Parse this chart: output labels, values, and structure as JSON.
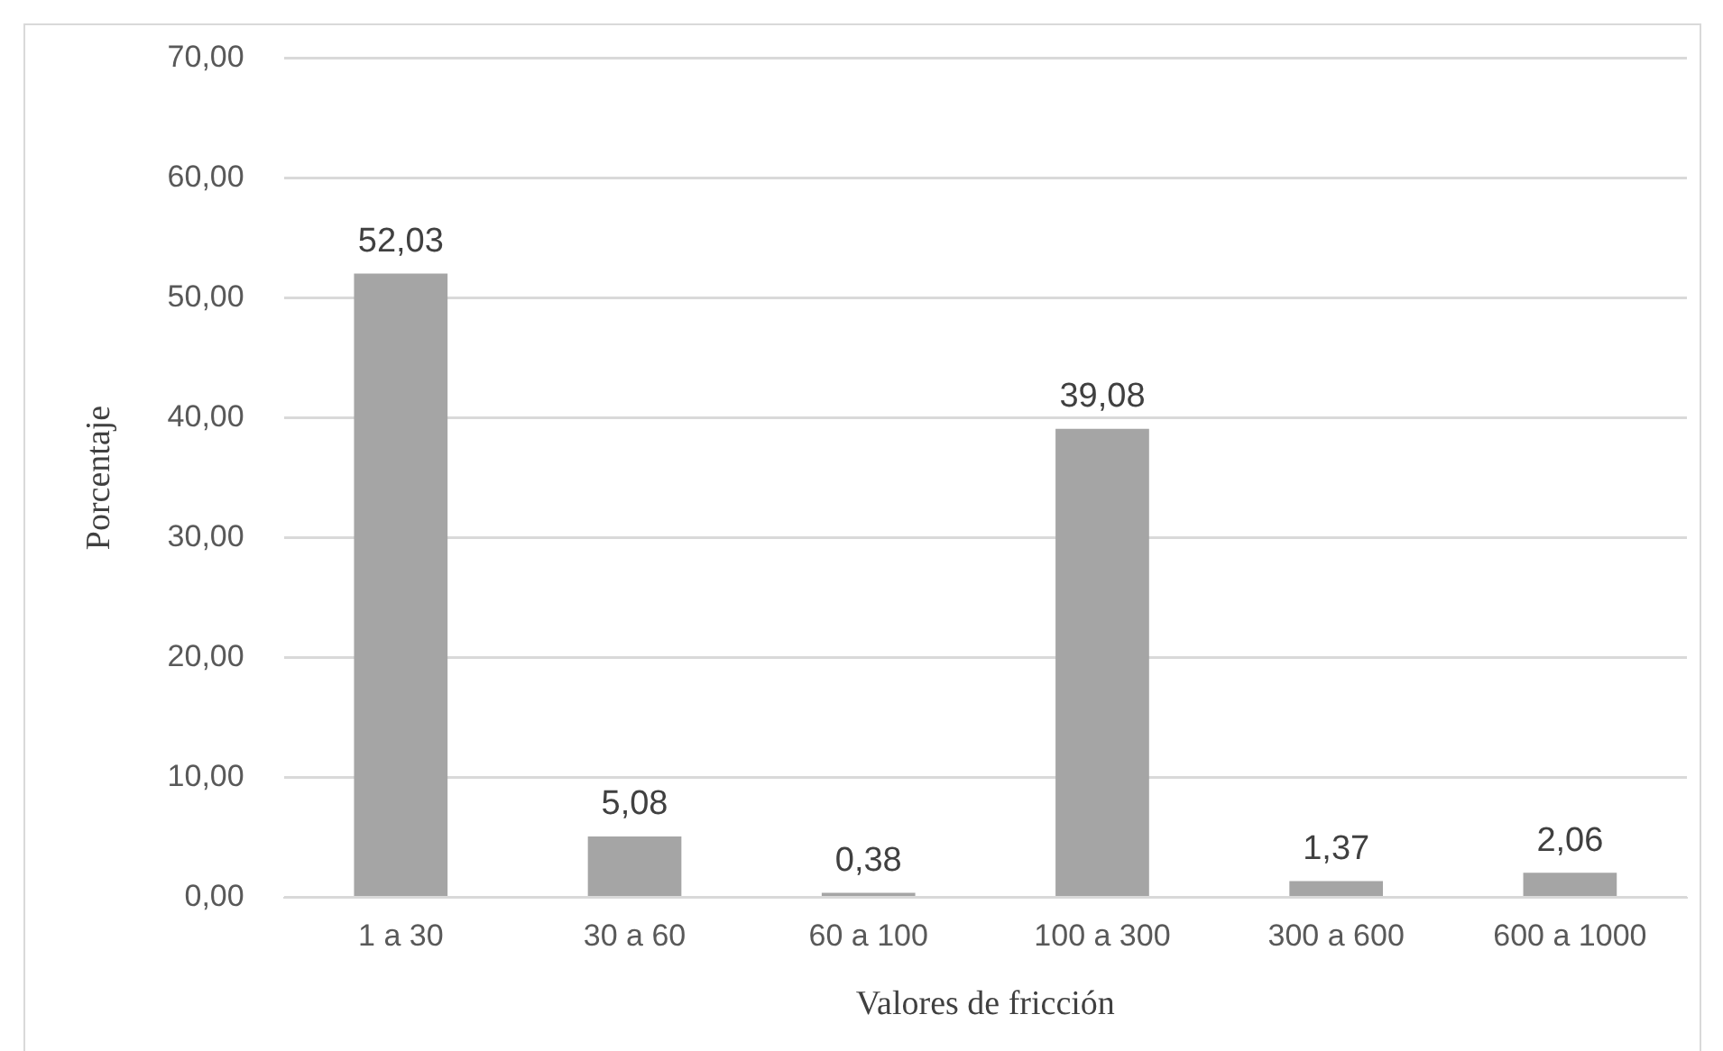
{
  "chart_data": {
    "type": "bar",
    "xlabel": "Valores de fricción",
    "ylabel": "Porcentaje",
    "categories": [
      "1 a 30",
      "30 a 60",
      "60 a 100",
      "100 a 300",
      "300 a 600",
      "600 a 1000"
    ],
    "values": [
      52.03,
      5.08,
      0.38,
      39.08,
      1.37,
      2.06
    ],
    "value_labels": [
      "52,03",
      "5,08",
      "0,38",
      "39,08",
      "1,37",
      "2,06"
    ],
    "color": "#a5a5a5",
    "ylim": [
      0,
      70
    ],
    "yticks": [
      {
        "value": 0,
        "label": "0,00"
      },
      {
        "value": 10,
        "label": "10,00"
      },
      {
        "value": 20,
        "label": "20,00"
      },
      {
        "value": 30,
        "label": "30,00"
      },
      {
        "value": 40,
        "label": "40,00"
      },
      {
        "value": 50,
        "label": "50,00"
      },
      {
        "value": 60,
        "label": "60,00"
      },
      {
        "value": 70,
        "label": "70,00"
      }
    ],
    "grid": "y",
    "legend": false
  }
}
